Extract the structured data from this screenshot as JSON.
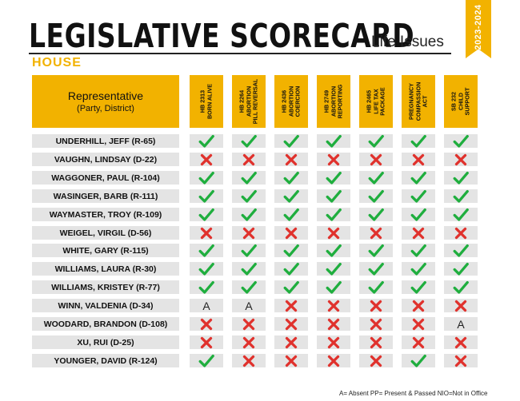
{
  "header": {
    "title": "LEGISLATIVE SCORECARD",
    "subtitle": "Life Issues",
    "years": "2023-2024",
    "chamber": "HOUSE"
  },
  "table": {
    "rep_header_line1": "Representative",
    "rep_header_line2": "(Party, District)",
    "bills": [
      "HB 2313\nBORN ALIVE",
      "HB 2264\nABORTION\nPILL REVERSAL",
      "HB 2436\nABORTION\nCOERCION",
      "HB 2749\nABORTION\nREPORTING",
      "HB 2465\nLIFE TAX\nPACKAGE",
      "PREGNANCY\nCOMPASSION\nACT",
      "SB 232\nCHILD\nSUPPORT"
    ],
    "rows": [
      {
        "name": "UNDERHILL, JEFF (R-65)",
        "votes": [
          "check",
          "check",
          "check",
          "check",
          "check",
          "check",
          "check"
        ]
      },
      {
        "name": "VAUGHN, LINDSAY (D-22)",
        "votes": [
          "x",
          "x",
          "x",
          "x",
          "x",
          "x",
          "x"
        ]
      },
      {
        "name": "WAGGONER, PAUL (R-104)",
        "votes": [
          "check",
          "check",
          "check",
          "check",
          "check",
          "check",
          "check"
        ]
      },
      {
        "name": "WASINGER, BARB (R-111)",
        "votes": [
          "check",
          "check",
          "check",
          "check",
          "check",
          "check",
          "check"
        ]
      },
      {
        "name": "WAYMASTER, TROY (R-109)",
        "votes": [
          "check",
          "check",
          "check",
          "check",
          "check",
          "check",
          "check"
        ]
      },
      {
        "name": "WEIGEL, VIRGIL (D-56)",
        "votes": [
          "x",
          "x",
          "x",
          "x",
          "x",
          "x",
          "x"
        ]
      },
      {
        "name": "WHITE, GARY (R-115)",
        "votes": [
          "check",
          "check",
          "check",
          "check",
          "check",
          "check",
          "check"
        ]
      },
      {
        "name": "WILLIAMS, LAURA (R-30)",
        "votes": [
          "check",
          "check",
          "check",
          "check",
          "check",
          "check",
          "check"
        ]
      },
      {
        "name": "WILLIAMS, KRISTEY (R-77)",
        "votes": [
          "check",
          "check",
          "check",
          "check",
          "check",
          "check",
          "check"
        ]
      },
      {
        "name": "WINN, VALDENIA (D-34)",
        "votes": [
          "A",
          "A",
          "x",
          "x",
          "x",
          "x",
          "x"
        ]
      },
      {
        "name": "WOODARD, BRANDON (D-108)",
        "votes": [
          "x",
          "x",
          "x",
          "x",
          "x",
          "x",
          "A"
        ]
      },
      {
        "name": "XU, RUI (D-25)",
        "votes": [
          "x",
          "x",
          "x",
          "x",
          "x",
          "x",
          "x"
        ]
      },
      {
        "name": "YOUNGER, DAVID (R-124)",
        "votes": [
          "check",
          "x",
          "x",
          "x",
          "x",
          "check",
          "x"
        ]
      }
    ]
  },
  "footer": {
    "legend": "A= Absent PP= Present & Passed NIO=Not in Office"
  },
  "colors": {
    "accent": "#f2b200",
    "check": "#1fae3e",
    "x": "#e0312c",
    "row_bg": "#e4e4e4"
  }
}
